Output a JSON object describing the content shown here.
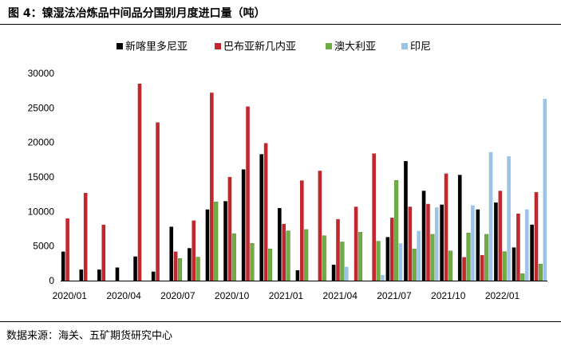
{
  "page": {
    "title": "图 4：镍湿法冶炼品中间品分国别月度进口量（吨）",
    "source": "数据来源：海关、五矿期货研究中心"
  },
  "chart_data": {
    "type": "bar",
    "title": "",
    "xlabel": "",
    "ylabel": "",
    "ylim": [
      0,
      30000
    ],
    "yticks": [
      0,
      5000,
      10000,
      15000,
      20000,
      25000,
      30000
    ],
    "grid": false,
    "legend_position": "top",
    "categories": [
      "2020/01",
      "2020/02",
      "2020/03",
      "2020/04",
      "2020/05",
      "2020/06",
      "2020/07",
      "2020/08",
      "2020/09",
      "2020/10",
      "2020/11",
      "2020/12",
      "2021/01",
      "2021/02",
      "2021/03",
      "2021/04",
      "2021/05",
      "2021/06",
      "2021/07",
      "2021/08",
      "2021/09",
      "2021/10",
      "2021/11",
      "2021/12",
      "2022/01",
      "2022/02",
      "2022/03"
    ],
    "tick_labels": [
      "2020/01",
      "2020/04",
      "2020/07",
      "2020/10",
      "2021/01",
      "2021/04",
      "2021/07",
      "2021/10",
      "2022/01"
    ],
    "series": [
      {
        "name": "新喀里多尼亚",
        "color": "#000000",
        "values": [
          4200,
          1600,
          1600,
          1900,
          3500,
          1300,
          7800,
          4700,
          10300,
          11500,
          16100,
          18300,
          10500,
          1500,
          0,
          2300,
          0,
          0,
          6300,
          17300,
          13000,
          11000,
          15300,
          10300,
          11300,
          4800,
          8100
        ]
      },
      {
        "name": "巴布亚新几内亚",
        "color": "#C0282D",
        "values": [
          9000,
          12700,
          8100,
          0,
          28500,
          22900,
          4200,
          8700,
          27200,
          15000,
          25200,
          19900,
          8200,
          14500,
          15900,
          8900,
          10700,
          18400,
          9100,
          10700,
          11100,
          15500,
          3400,
          3700,
          13000,
          9700,
          12800
        ]
      },
      {
        "name": "澳大利亚",
        "color": "#70AD47",
        "values": [
          0,
          0,
          0,
          0,
          0,
          0,
          3200,
          3400,
          11400,
          6800,
          5400,
          4600,
          7200,
          7400,
          6500,
          5600,
          7000,
          5700,
          14500,
          4600,
          6700,
          4300,
          6900,
          6700,
          4200,
          1000,
          2400
        ]
      },
      {
        "name": "印尼",
        "color": "#9DC3E6",
        "values": [
          0,
          0,
          0,
          0,
          0,
          0,
          0,
          0,
          0,
          0,
          0,
          0,
          0,
          0,
          0,
          2000,
          0,
          800,
          5400,
          7200,
          10600,
          0,
          10900,
          18600,
          18000,
          10300,
          26300
        ]
      }
    ]
  }
}
